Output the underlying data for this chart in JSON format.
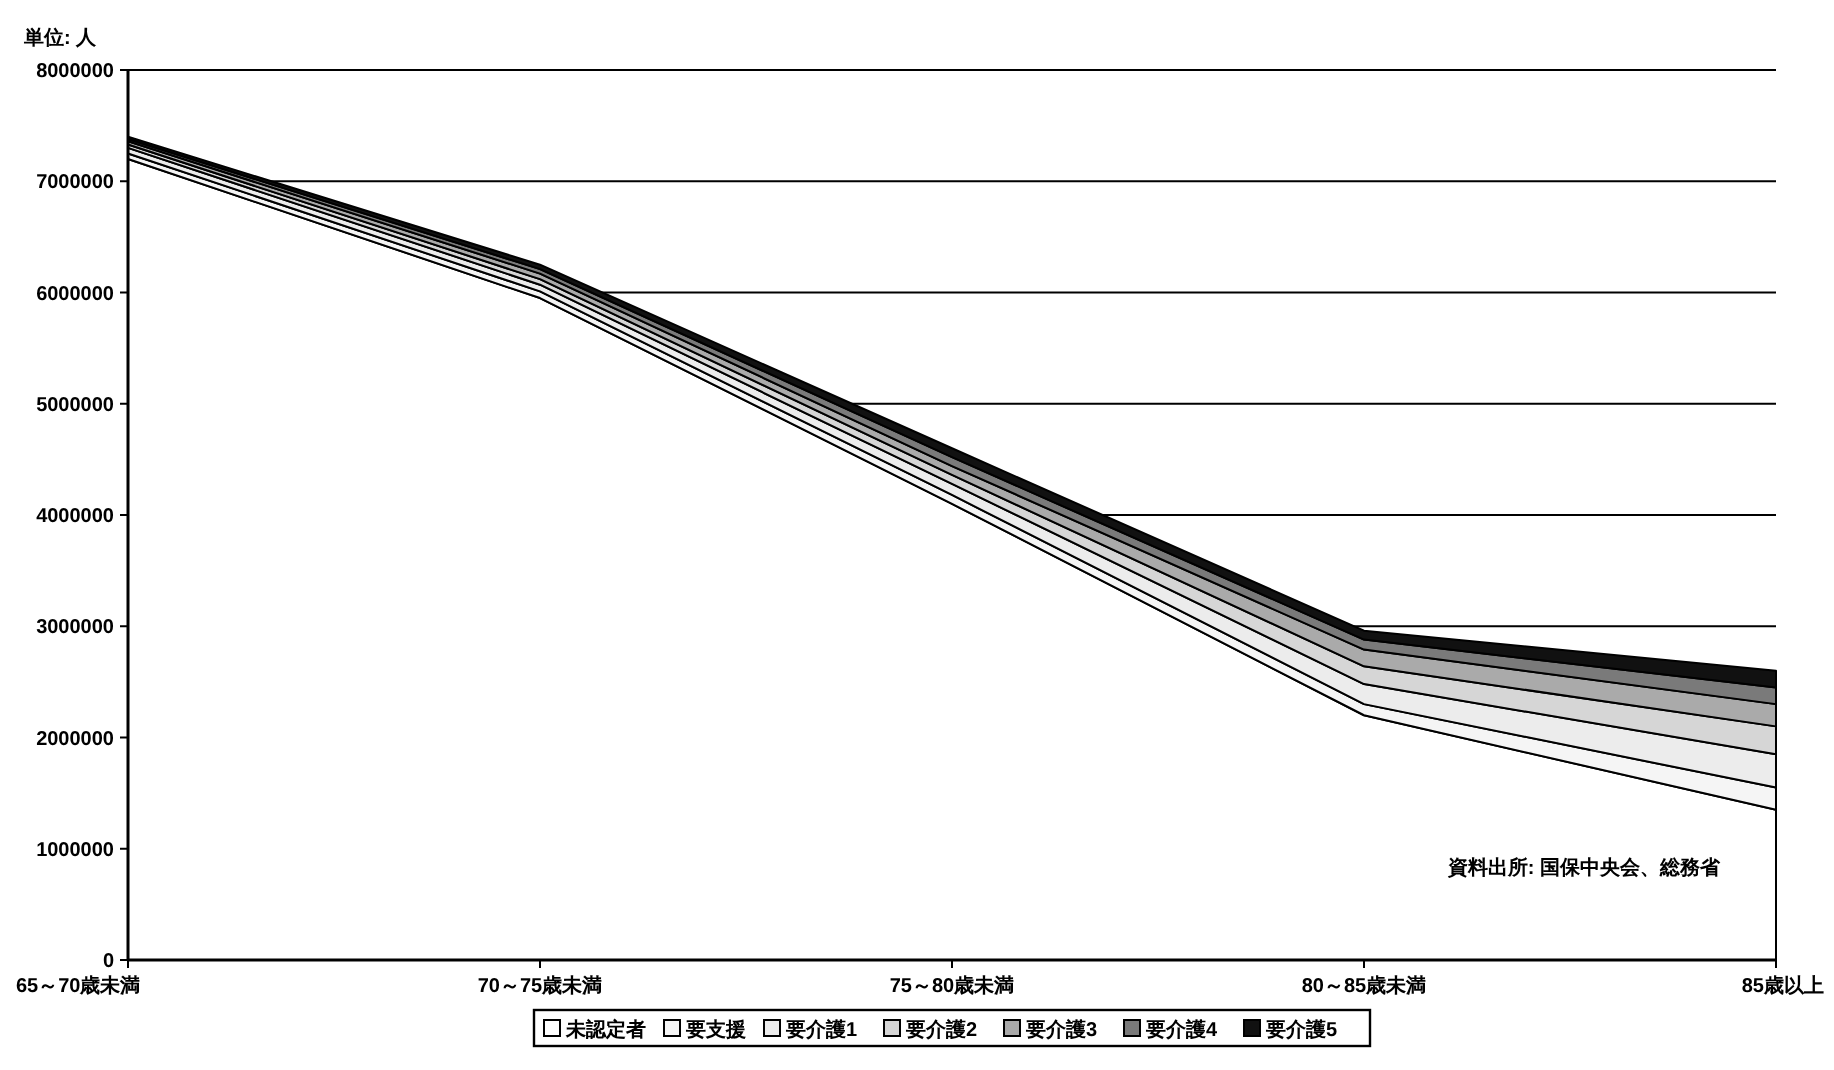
{
  "chart_data": {
    "type": "area",
    "stacked": true,
    "annotations": [
      "単位: 人",
      "資料出所: 国保中央会、総務省"
    ],
    "categories": [
      "65～70歳未満",
      "70～75歳未満",
      "75～80歳未満",
      "80～85歳未満",
      "85歳以上"
    ],
    "series": [
      {
        "name": "未認定者",
        "color": "#ffffff",
        "values": [
          7200000,
          5950000,
          4100000,
          2200000,
          1350000
        ]
      },
      {
        "name": "要支援",
        "color": "#f5f5f5",
        "values": [
          50000,
          60000,
          80000,
          100000,
          200000
        ]
      },
      {
        "name": "要介護1",
        "color": "#ececec",
        "values": [
          50000,
          60000,
          100000,
          180000,
          300000
        ]
      },
      {
        "name": "要介護2",
        "color": "#d6d6d6",
        "values": [
          30000,
          50000,
          80000,
          160000,
          250000
        ]
      },
      {
        "name": "要介護3",
        "color": "#aaaaaa",
        "values": [
          30000,
          50000,
          80000,
          150000,
          200000
        ]
      },
      {
        "name": "要介護4",
        "color": "#7a7a7a",
        "values": [
          20000,
          40000,
          80000,
          90000,
          150000
        ]
      },
      {
        "name": "要介護5",
        "color": "#111111",
        "values": [
          20000,
          40000,
          80000,
          80000,
          150000
        ]
      }
    ],
    "ylim": [
      0,
      8000000
    ],
    "yticks": [
      0,
      1000000,
      2000000,
      3000000,
      4000000,
      5000000,
      6000000,
      7000000,
      8000000
    ],
    "grid": "y",
    "legend": "bottom"
  }
}
